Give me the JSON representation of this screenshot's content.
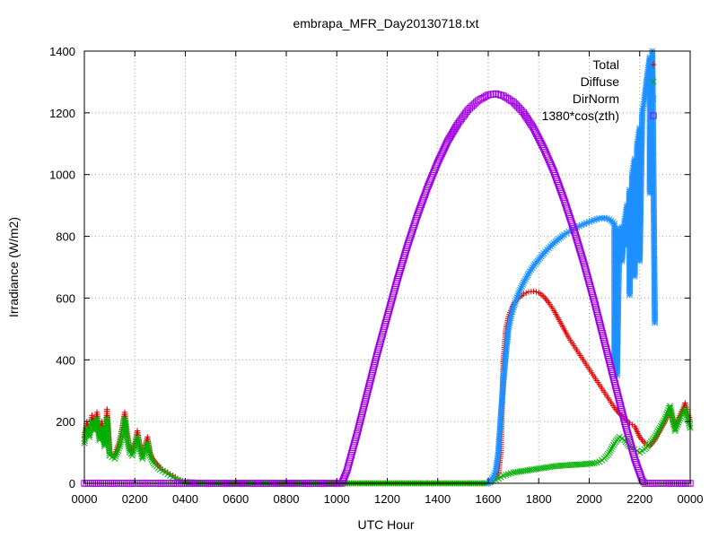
{
  "chart_data": {
    "type": "scatter",
    "title": "embrapa_MFR_Day20130718.txt",
    "xlabel": "UTC Hour",
    "ylabel": "Irradiance (W/m2)",
    "xlim": [
      0,
      24
    ],
    "ylim": [
      0,
      1400
    ],
    "grid": true,
    "legend_position": "top-right",
    "x_ticks": [
      {
        "value": 0,
        "label": "0000"
      },
      {
        "value": 2,
        "label": "0200"
      },
      {
        "value": 4,
        "label": "0400"
      },
      {
        "value": 6,
        "label": "0600"
      },
      {
        "value": 8,
        "label": "0800"
      },
      {
        "value": 10,
        "label": "1000"
      },
      {
        "value": 12,
        "label": "1200"
      },
      {
        "value": 14,
        "label": "1400"
      },
      {
        "value": 16,
        "label": "1600"
      },
      {
        "value": 18,
        "label": "1800"
      },
      {
        "value": 20,
        "label": "2000"
      },
      {
        "value": 22,
        "label": "2200"
      },
      {
        "value": 24,
        "label": "0000"
      }
    ],
    "y_ticks": [
      0,
      200,
      400,
      600,
      800,
      1000,
      1200,
      1400
    ],
    "series": [
      {
        "name": "Total",
        "marker": "plus",
        "color": "#e00000",
        "points": [
          [
            0.0,
            150
          ],
          [
            0.1,
            200
          ],
          [
            0.2,
            170
          ],
          [
            0.3,
            220
          ],
          [
            0.4,
            190
          ],
          [
            0.5,
            230
          ],
          [
            0.6,
            160
          ],
          [
            0.7,
            200
          ],
          [
            0.8,
            140
          ],
          [
            0.9,
            240
          ],
          [
            1.0,
            100
          ],
          [
            1.2,
            90
          ],
          [
            1.4,
            140
          ],
          [
            1.5,
            180
          ],
          [
            1.6,
            230
          ],
          [
            1.7,
            160
          ],
          [
            1.8,
            110
          ],
          [
            1.9,
            100
          ],
          [
            2.0,
            130
          ],
          [
            2.1,
            170
          ],
          [
            2.2,
            120
          ],
          [
            2.3,
            90
          ],
          [
            2.5,
            150
          ],
          [
            2.6,
            100
          ],
          [
            2.7,
            80
          ],
          [
            2.8,
            70
          ],
          [
            3.0,
            50
          ],
          [
            3.2,
            40
          ],
          [
            3.4,
            30
          ],
          [
            3.6,
            20
          ],
          [
            3.8,
            10
          ],
          [
            4.0,
            5
          ],
          [
            5.0,
            0
          ],
          [
            6.0,
            0
          ],
          [
            7.0,
            0
          ],
          [
            8.0,
            0
          ],
          [
            9.0,
            0
          ],
          [
            10.0,
            0
          ],
          [
            11.0,
            0
          ],
          [
            12.0,
            0
          ],
          [
            13.0,
            0
          ],
          [
            14.0,
            0
          ],
          [
            15.0,
            0
          ],
          [
            16.0,
            0
          ],
          [
            16.2,
            10
          ],
          [
            16.4,
            30
          ],
          [
            16.5,
            100
          ],
          [
            16.6,
            400
          ],
          [
            16.7,
            500
          ],
          [
            16.8,
            540
          ],
          [
            17.0,
            580
          ],
          [
            17.2,
            600
          ],
          [
            17.4,
            613
          ],
          [
            17.6,
            620
          ],
          [
            17.8,
            622
          ],
          [
            18.0,
            618
          ],
          [
            18.2,
            605
          ],
          [
            18.4,
            585
          ],
          [
            18.6,
            560
          ],
          [
            18.8,
            530
          ],
          [
            19.0,
            500
          ],
          [
            19.2,
            470
          ],
          [
            19.4,
            445
          ],
          [
            19.6,
            420
          ],
          [
            19.8,
            395
          ],
          [
            20.0,
            370
          ],
          [
            20.2,
            345
          ],
          [
            20.4,
            320
          ],
          [
            20.6,
            295
          ],
          [
            20.8,
            270
          ],
          [
            21.0,
            245
          ],
          [
            21.2,
            225
          ],
          [
            21.4,
            210
          ],
          [
            21.6,
            195
          ],
          [
            21.8,
            185
          ],
          [
            22.0,
            150
          ],
          [
            22.2,
            130
          ],
          [
            22.4,
            120
          ],
          [
            22.6,
            140
          ],
          [
            22.8,
            170
          ],
          [
            23.0,
            200
          ],
          [
            23.2,
            240
          ],
          [
            23.4,
            180
          ],
          [
            23.6,
            220
          ],
          [
            23.8,
            260
          ],
          [
            24.0,
            200
          ]
        ]
      },
      {
        "name": "Diffuse",
        "marker": "cross",
        "color": "#00b000",
        "points": [
          [
            0.0,
            130
          ],
          [
            0.1,
            180
          ],
          [
            0.2,
            150
          ],
          [
            0.3,
            200
          ],
          [
            0.4,
            170
          ],
          [
            0.5,
            210
          ],
          [
            0.6,
            140
          ],
          [
            0.7,
            180
          ],
          [
            0.8,
            120
          ],
          [
            0.9,
            210
          ],
          [
            1.0,
            90
          ],
          [
            1.2,
            80
          ],
          [
            1.4,
            120
          ],
          [
            1.5,
            160
          ],
          [
            1.6,
            210
          ],
          [
            1.7,
            140
          ],
          [
            1.8,
            100
          ],
          [
            1.9,
            90
          ],
          [
            2.0,
            120
          ],
          [
            2.1,
            150
          ],
          [
            2.2,
            110
          ],
          [
            2.3,
            80
          ],
          [
            2.5,
            130
          ],
          [
            2.6,
            90
          ],
          [
            2.7,
            70
          ],
          [
            2.8,
            60
          ],
          [
            3.0,
            45
          ],
          [
            3.2,
            35
          ],
          [
            3.4,
            25
          ],
          [
            3.6,
            15
          ],
          [
            3.8,
            8
          ],
          [
            4.0,
            4
          ],
          [
            5.0,
            0
          ],
          [
            6.0,
            0
          ],
          [
            7.0,
            0
          ],
          [
            8.0,
            0
          ],
          [
            9.0,
            0
          ],
          [
            10.0,
            0
          ],
          [
            11.0,
            0
          ],
          [
            12.0,
            0
          ],
          [
            13.0,
            0
          ],
          [
            14.0,
            0
          ],
          [
            15.0,
            0
          ],
          [
            16.0,
            0
          ],
          [
            16.2,
            8
          ],
          [
            16.4,
            15
          ],
          [
            16.6,
            25
          ],
          [
            16.8,
            30
          ],
          [
            17.0,
            35
          ],
          [
            17.4,
            40
          ],
          [
            17.8,
            45
          ],
          [
            18.2,
            50
          ],
          [
            18.6,
            55
          ],
          [
            19.0,
            58
          ],
          [
            19.4,
            60
          ],
          [
            19.8,
            62
          ],
          [
            20.2,
            65
          ],
          [
            20.4,
            70
          ],
          [
            20.6,
            80
          ],
          [
            20.8,
            100
          ],
          [
            21.0,
            130
          ],
          [
            21.2,
            150
          ],
          [
            21.4,
            140
          ],
          [
            21.6,
            120
          ],
          [
            21.8,
            110
          ],
          [
            22.0,
            100
          ],
          [
            22.2,
            110
          ],
          [
            22.4,
            130
          ],
          [
            22.6,
            150
          ],
          [
            22.8,
            180
          ],
          [
            23.0,
            210
          ],
          [
            23.2,
            250
          ],
          [
            23.4,
            170
          ],
          [
            23.6,
            210
          ],
          [
            23.8,
            240
          ],
          [
            24.0,
            180
          ]
        ]
      },
      {
        "name": "DirNorm",
        "marker": "star",
        "color": "#1e90ff",
        "points": [
          [
            16.0,
            0
          ],
          [
            16.2,
            20
          ],
          [
            16.3,
            40
          ],
          [
            16.4,
            100
          ],
          [
            16.5,
            220
          ],
          [
            16.6,
            330
          ],
          [
            16.7,
            420
          ],
          [
            16.8,
            500
          ],
          [
            16.9,
            540
          ],
          [
            17.0,
            570
          ],
          [
            17.2,
            615
          ],
          [
            17.4,
            650
          ],
          [
            17.6,
            680
          ],
          [
            17.8,
            705
          ],
          [
            18.0,
            725
          ],
          [
            18.2,
            745
          ],
          [
            18.4,
            762
          ],
          [
            18.6,
            778
          ],
          [
            18.8,
            792
          ],
          [
            19.0,
            805
          ],
          [
            19.2,
            815
          ],
          [
            19.4,
            825
          ],
          [
            19.6,
            833
          ],
          [
            19.8,
            840
          ],
          [
            20.0,
            847
          ],
          [
            20.2,
            853
          ],
          [
            20.4,
            858
          ],
          [
            20.6,
            860
          ],
          [
            20.8,
            855
          ],
          [
            21.0,
            840
          ],
          [
            21.1,
            825
          ],
          [
            21.2,
            820
          ],
          [
            21.3,
            830
          ],
          [
            21.4,
            850
          ],
          [
            21.5,
            900
          ],
          [
            21.6,
            950
          ],
          [
            21.7,
            1000
          ],
          [
            21.8,
            1050
          ],
          [
            21.9,
            1100
          ],
          [
            22.0,
            1150
          ],
          [
            22.1,
            1200
          ],
          [
            22.2,
            1250
          ],
          [
            22.3,
            1320
          ],
          [
            22.4,
            1380
          ],
          [
            22.5,
            1400
          ],
          [
            21.0,
            380
          ],
          [
            21.1,
            350
          ],
          [
            21.3,
            720
          ],
          [
            21.5,
            770
          ],
          [
            21.6,
            610
          ],
          [
            21.8,
            670
          ],
          [
            22.0,
            720
          ],
          [
            22.4,
            940
          ],
          [
            22.6,
            520
          ]
        ]
      },
      {
        "name": "1380*cos(zth)",
        "marker": "square",
        "color": "#a000e0",
        "points": [
          [
            0,
            0
          ],
          [
            2,
            0
          ],
          [
            4,
            0
          ],
          [
            6,
            0
          ],
          [
            8,
            0
          ],
          [
            10,
            0
          ],
          [
            10.2,
            0
          ],
          [
            10.4,
            40
          ],
          [
            10.8,
            160
          ],
          [
            11.2,
            290
          ],
          [
            11.6,
            420
          ],
          [
            12.0,
            540
          ],
          [
            12.4,
            660
          ],
          [
            12.8,
            770
          ],
          [
            13.2,
            870
          ],
          [
            13.6,
            960
          ],
          [
            14.0,
            1040
          ],
          [
            14.4,
            1110
          ],
          [
            14.8,
            1165
          ],
          [
            15.2,
            1210
          ],
          [
            15.6,
            1240
          ],
          [
            16.0,
            1258
          ],
          [
            16.3,
            1262
          ],
          [
            16.6,
            1255
          ],
          [
            17.0,
            1235
          ],
          [
            17.4,
            1200
          ],
          [
            17.8,
            1150
          ],
          [
            18.2,
            1085
          ],
          [
            18.6,
            1010
          ],
          [
            19.0,
            920
          ],
          [
            19.4,
            820
          ],
          [
            19.8,
            710
          ],
          [
            20.2,
            590
          ],
          [
            20.6,
            460
          ],
          [
            21.0,
            330
          ],
          [
            21.4,
            200
          ],
          [
            21.8,
            80
          ],
          [
            22.1,
            10
          ],
          [
            22.2,
            0
          ],
          [
            23,
            0
          ],
          [
            24,
            0
          ]
        ]
      }
    ]
  }
}
